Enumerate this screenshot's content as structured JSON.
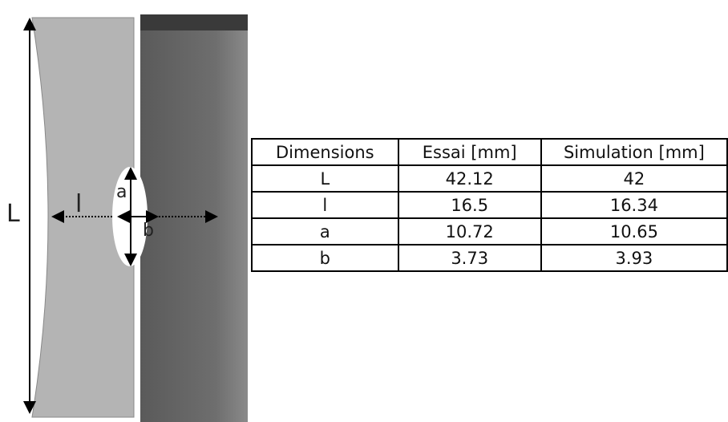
{
  "figure": {
    "labels": [
      "L",
      "l",
      "a",
      "b"
    ]
  },
  "table": {
    "header": [
      "Dimensions",
      "Essai  [mm]",
      "Simulation [mm]"
    ],
    "rows": [
      [
        "L",
        42.12,
        42
      ],
      [
        "l",
        16.5,
        16.34
      ],
      [
        "a",
        10.72,
        10.65
      ],
      [
        "b",
        3.73,
        3.93
      ]
    ]
  }
}
